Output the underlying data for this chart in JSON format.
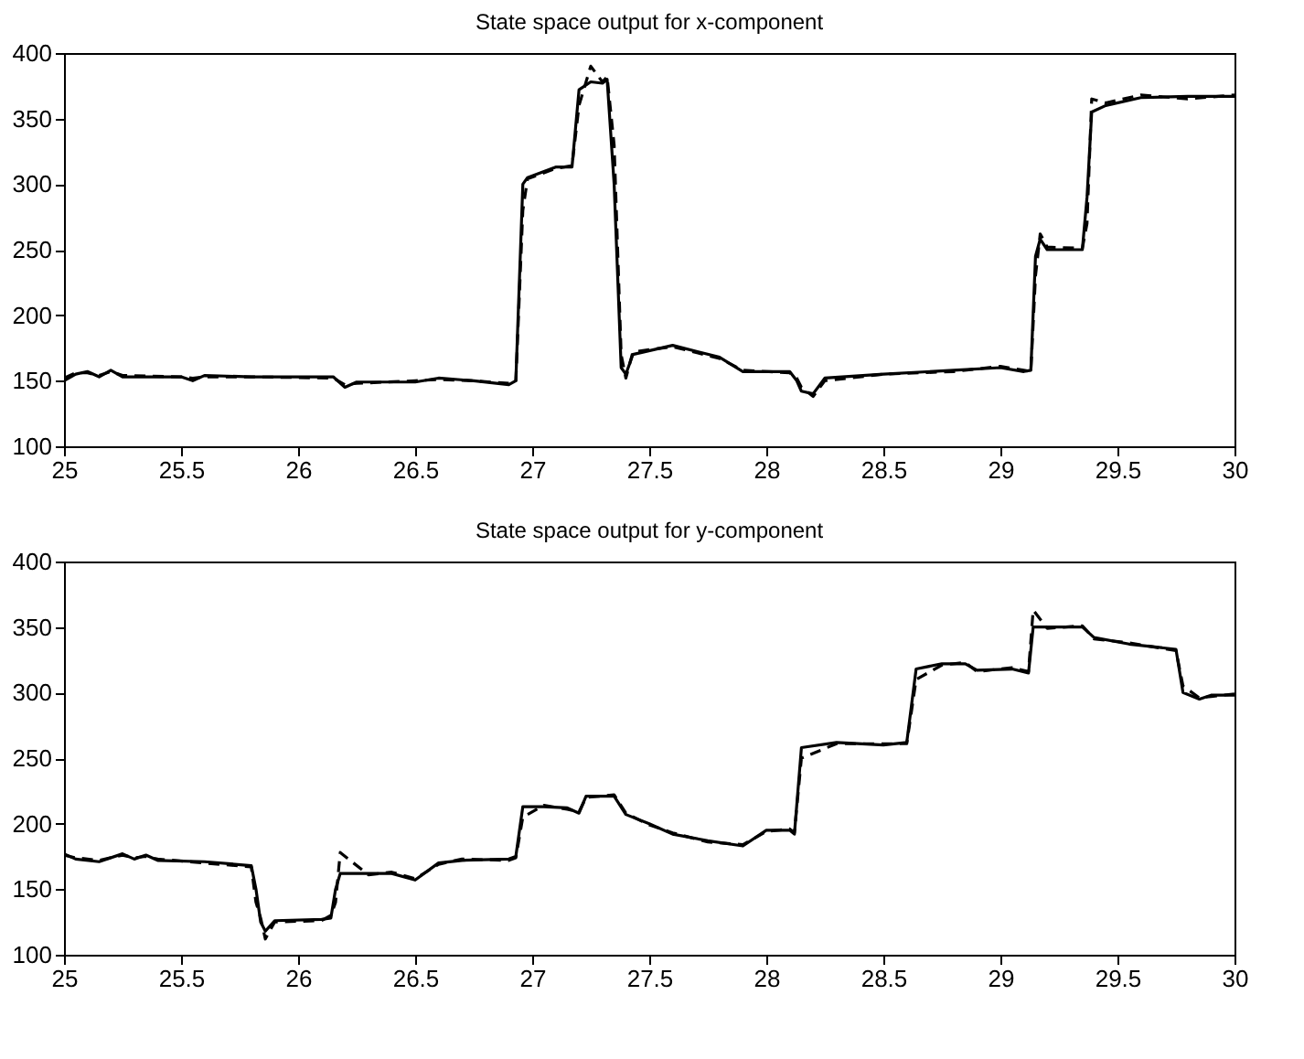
{
  "chart_data": [
    {
      "type": "line",
      "title": "State space output for x-component",
      "xlim": [
        25,
        30
      ],
      "xticks": [
        25,
        25.5,
        26,
        26.5,
        27,
        27.5,
        28,
        28.5,
        29,
        29.5,
        30
      ],
      "ylim": [
        100,
        400
      ],
      "yticks": [
        100,
        150,
        200,
        250,
        300,
        350,
        400
      ],
      "grid": false,
      "marker": "none",
      "x": [
        25.0,
        25.05,
        25.1,
        25.15,
        25.2,
        25.25,
        25.5,
        25.55,
        25.6,
        25.8,
        26.15,
        26.2,
        26.25,
        26.5,
        26.6,
        26.75,
        26.9,
        26.93,
        26.96,
        26.98,
        27.1,
        27.17,
        27.2,
        27.25,
        27.3,
        27.32,
        27.35,
        27.38,
        27.4,
        27.43,
        27.6,
        27.8,
        27.9,
        28.1,
        28.13,
        28.15,
        28.2,
        28.25,
        28.5,
        28.8,
        29.0,
        29.1,
        29.13,
        29.15,
        29.17,
        29.2,
        29.35,
        29.37,
        29.39,
        29.45,
        29.6,
        29.8,
        30.0
      ],
      "series": [
        {
          "color": "#000000",
          "line_style": "solid",
          "values": [
            150,
            155,
            157,
            153,
            158,
            153,
            153,
            150,
            154,
            153,
            153,
            145,
            149,
            149,
            152,
            150,
            147,
            150,
            300,
            305,
            313,
            313,
            372,
            378,
            377,
            380,
            300,
            160,
            155,
            170,
            177,
            168,
            157,
            157,
            150,
            142,
            140,
            152,
            155,
            158,
            160,
            157,
            158,
            245,
            258,
            250,
            250,
            290,
            355,
            360,
            366,
            367,
            367
          ]
        },
        {
          "color": "#000000",
          "line_style": "dashed",
          "values": [
            152,
            156,
            156,
            154,
            157,
            154,
            153,
            152,
            153,
            153,
            152,
            147,
            148,
            150,
            151,
            150,
            148,
            149,
            280,
            304,
            312,
            314,
            360,
            390,
            378,
            382,
            330,
            170,
            152,
            172,
            176,
            167,
            158,
            156,
            152,
            145,
            138,
            150,
            155,
            157,
            161,
            158,
            157,
            230,
            262,
            252,
            251,
            270,
            365,
            362,
            368,
            365,
            368
          ]
        }
      ]
    },
    {
      "type": "line",
      "title": "State space output for y-component",
      "xlim": [
        25,
        30
      ],
      "xticks": [
        25,
        25.5,
        26,
        26.5,
        27,
        27.5,
        28,
        28.5,
        29,
        29.5,
        30
      ],
      "ylim": [
        100,
        400
      ],
      "yticks": [
        100,
        150,
        200,
        250,
        300,
        350,
        400
      ],
      "grid": false,
      "marker": "none",
      "x": [
        25.0,
        25.05,
        25.15,
        25.25,
        25.3,
        25.35,
        25.4,
        25.6,
        25.8,
        25.82,
        25.84,
        25.86,
        25.9,
        26.1,
        26.14,
        26.16,
        26.18,
        26.3,
        26.4,
        26.5,
        26.6,
        26.7,
        26.9,
        26.93,
        26.96,
        27.05,
        27.15,
        27.2,
        27.23,
        27.35,
        27.4,
        27.5,
        27.6,
        27.75,
        27.9,
        28.0,
        28.1,
        28.12,
        28.15,
        28.3,
        28.5,
        28.6,
        28.64,
        28.75,
        28.85,
        28.9,
        29.05,
        29.12,
        29.14,
        29.2,
        29.35,
        29.4,
        29.55,
        29.75,
        29.78,
        29.85,
        29.9,
        30.0
      ],
      "series": [
        {
          "color": "#000000",
          "line_style": "solid",
          "values": [
            177,
            173,
            171,
            177,
            173,
            176,
            172,
            171,
            168,
            150,
            125,
            118,
            126,
            127,
            128,
            150,
            162,
            162,
            162,
            157,
            170,
            172,
            173,
            175,
            213,
            213,
            212,
            208,
            221,
            221,
            207,
            200,
            192,
            187,
            183,
            195,
            195,
            192,
            258,
            262,
            260,
            262,
            318,
            322,
            322,
            317,
            318,
            315,
            350,
            350,
            350,
            342,
            337,
            333,
            300,
            295,
            298,
            298
          ]
        },
        {
          "color": "#000000",
          "line_style": "dashed",
          "values": [
            176,
            174,
            172,
            176,
            174,
            175,
            173,
            170,
            167,
            140,
            128,
            112,
            125,
            126,
            130,
            140,
            178,
            161,
            163,
            158,
            169,
            173,
            172,
            174,
            205,
            214,
            211,
            209,
            220,
            222,
            208,
            199,
            193,
            186,
            184,
            194,
            196,
            193,
            250,
            261,
            261,
            261,
            310,
            321,
            323,
            316,
            319,
            316,
            363,
            349,
            351,
            341,
            338,
            332,
            305,
            296,
            297,
            299
          ]
        }
      ]
    }
  ]
}
